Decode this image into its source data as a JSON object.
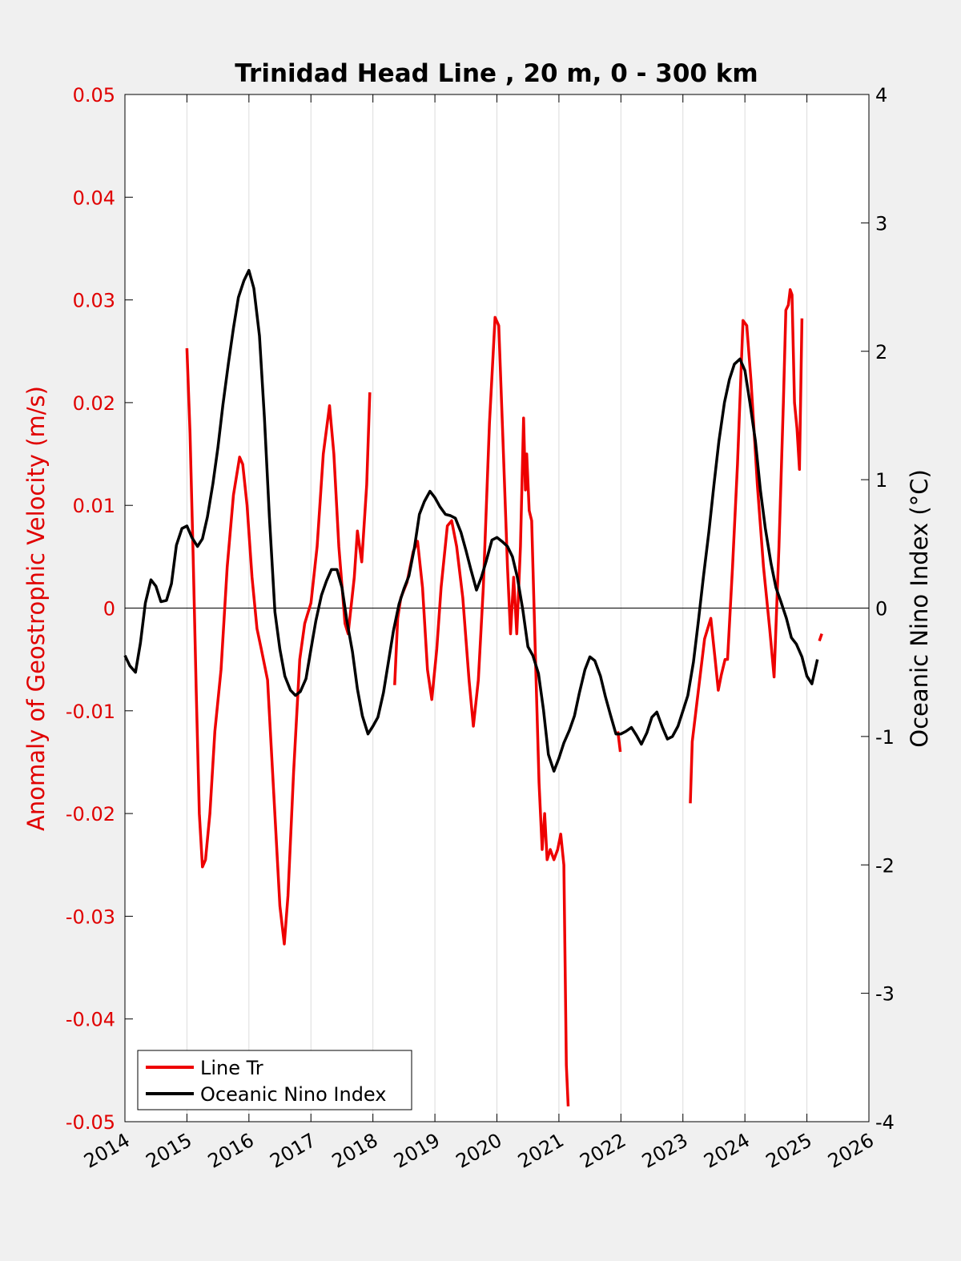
{
  "chart_data": {
    "type": "line",
    "title": "Trinidad Head Line , 20 m, 0 - 300 km",
    "xlabel": "",
    "xlim": [
      2014,
      2026
    ],
    "x_ticks": [
      "2014",
      "2015",
      "2016",
      "2017",
      "2018",
      "2019",
      "2020",
      "2021",
      "2022",
      "2023",
      "2024",
      "2025",
      "2026"
    ],
    "ylabel_left": "Anomaly of Geostrophic Velocity (m/s)",
    "ylim_left": [
      -0.05,
      0.05
    ],
    "y_ticks_left": [
      "0.05",
      "0.04",
      "0.03",
      "0.02",
      "0.01",
      "0",
      "-0.01",
      "-0.02",
      "-0.03",
      "-0.04",
      "-0.05"
    ],
    "ylabel_right": "Oceanic Nino Index (°C)",
    "ylim_right": [
      -4,
      4
    ],
    "y_ticks_right": [
      "4",
      "3",
      "2",
      "1",
      "0",
      "-1",
      "-2",
      "-3",
      "-4"
    ],
    "grid": "vertical",
    "legend_position": "bottom-left",
    "colors": {
      "line_tr": "#ee0000",
      "oni": "#000000",
      "axis_left": "#e00000"
    },
    "series": [
      {
        "name": "Line Tr",
        "axis": "left",
        "segments": [
          [
            [
              2015.0,
              0.0253
            ],
            [
              2015.05,
              0.017
            ],
            [
              2015.1,
              0.005
            ],
            [
              2015.15,
              -0.008
            ],
            [
              2015.2,
              -0.02
            ],
            [
              2015.25,
              -0.0252
            ],
            [
              2015.3,
              -0.0245
            ],
            [
              2015.37,
              -0.02
            ],
            [
              2015.45,
              -0.012
            ],
            [
              2015.55,
              -0.006
            ],
            [
              2015.65,
              0.004
            ],
            [
              2015.75,
              0.011
            ],
            [
              2015.85,
              0.0147
            ],
            [
              2015.9,
              0.014
            ],
            [
              2015.97,
              0.01
            ],
            [
              2016.05,
              0.003
            ],
            [
              2016.13,
              -0.002
            ],
            [
              2016.2,
              -0.004
            ],
            [
              2016.3,
              -0.007
            ],
            [
              2016.4,
              -0.018
            ],
            [
              2016.5,
              -0.029
            ],
            [
              2016.57,
              -0.0327
            ],
            [
              2016.63,
              -0.028
            ],
            [
              2016.72,
              -0.016
            ],
            [
              2016.82,
              -0.005
            ],
            [
              2016.9,
              -0.0015
            ],
            [
              2017.0,
              0.0005
            ],
            [
              2017.1,
              0.006
            ],
            [
              2017.2,
              0.015
            ],
            [
              2017.3,
              0.0197
            ],
            [
              2017.37,
              0.015
            ],
            [
              2017.45,
              0.006
            ],
            [
              2017.55,
              -0.0015
            ],
            [
              2017.6,
              -0.0025
            ],
            [
              2017.7,
              0.003
            ],
            [
              2017.75,
              0.0075
            ],
            [
              2017.82,
              0.0045
            ],
            [
              2017.9,
              0.012
            ],
            [
              2017.95,
              0.021
            ]
          ],
          [
            [
              2018.35,
              -0.0075
            ],
            [
              2018.4,
              -0.001
            ],
            [
              2018.45,
              0.001
            ],
            [
              2018.55,
              0.0025
            ],
            [
              2018.65,
              0.0055
            ],
            [
              2018.72,
              0.0065
            ],
            [
              2018.8,
              0.002
            ],
            [
              2018.88,
              -0.006
            ],
            [
              2018.95,
              -0.0089
            ],
            [
              2019.03,
              -0.004
            ],
            [
              2019.1,
              0.002
            ],
            [
              2019.2,
              0.008
            ],
            [
              2019.27,
              0.0085
            ],
            [
              2019.35,
              0.006
            ],
            [
              2019.45,
              0.001
            ],
            [
              2019.55,
              -0.007
            ],
            [
              2019.62,
              -0.0115
            ],
            [
              2019.7,
              -0.007
            ],
            [
              2019.78,
              0.002
            ],
            [
              2019.88,
              0.018
            ],
            [
              2019.97,
              0.0283
            ],
            [
              2020.03,
              0.0275
            ],
            [
              2020.1,
              0.016
            ],
            [
              2020.17,
              0.004
            ],
            [
              2020.22,
              -0.0025
            ],
            [
              2020.27,
              0.003
            ],
            [
              2020.32,
              -0.0025
            ],
            [
              2020.38,
              0.006
            ],
            [
              2020.43,
              0.0185
            ],
            [
              2020.46,
              0.0115
            ],
            [
              2020.48,
              0.015
            ],
            [
              2020.52,
              0.0095
            ],
            [
              2020.56,
              0.0085
            ],
            [
              2020.62,
              -0.0045
            ],
            [
              2020.68,
              -0.017
            ],
            [
              2020.73,
              -0.0235
            ],
            [
              2020.77,
              -0.02
            ],
            [
              2020.81,
              -0.0245
            ],
            [
              2020.86,
              -0.0235
            ],
            [
              2020.92,
              -0.0245
            ],
            [
              2020.98,
              -0.0235
            ],
            [
              2021.03,
              -0.022
            ],
            [
              2021.08,
              -0.025
            ],
            [
              2021.12,
              -0.0445
            ],
            [
              2021.15,
              -0.0485
            ]
          ],
          [
            [
              2021.95,
              -0.012
            ],
            [
              2021.99,
              -0.014
            ]
          ],
          [
            [
              2023.12,
              -0.019
            ],
            [
              2023.15,
              -0.013
            ],
            [
              2023.25,
              -0.008
            ],
            [
              2023.35,
              -0.003
            ],
            [
              2023.45,
              -0.001
            ],
            [
              2023.52,
              -0.005
            ],
            [
              2023.57,
              -0.008
            ],
            [
              2023.62,
              -0.0065
            ],
            [
              2023.68,
              -0.005
            ],
            [
              2023.72,
              -0.005
            ],
            [
              2023.8,
              0.004
            ],
            [
              2023.88,
              0.014
            ],
            [
              2023.97,
              0.028
            ],
            [
              2024.03,
              0.0275
            ],
            [
              2024.1,
              0.022
            ],
            [
              2024.2,
              0.012
            ],
            [
              2024.3,
              0.004
            ],
            [
              2024.4,
              -0.002
            ],
            [
              2024.47,
              -0.0067
            ],
            [
              2024.55,
              0.006
            ],
            [
              2024.62,
              0.02
            ],
            [
              2024.66,
              0.029
            ],
            [
              2024.7,
              0.0295
            ],
            [
              2024.73,
              0.031
            ],
            [
              2024.76,
              0.0305
            ],
            [
              2024.8,
              0.02
            ],
            [
              2024.84,
              0.0175
            ],
            [
              2024.88,
              0.0135
            ],
            [
              2024.92,
              0.0282
            ]
          ],
          [
            [
              2025.2,
              -0.0032
            ],
            [
              2025.24,
              -0.0025
            ]
          ]
        ]
      },
      {
        "name": "Oceanic Nino Index",
        "axis": "right",
        "segments": [
          [
            [
              2014.0,
              -0.37
            ],
            [
              2014.08,
              -0.45
            ],
            [
              2014.17,
              -0.5
            ],
            [
              2014.25,
              -0.27
            ],
            [
              2014.33,
              0.04
            ],
            [
              2014.42,
              0.22
            ],
            [
              2014.5,
              0.17
            ],
            [
              2014.58,
              0.05
            ],
            [
              2014.67,
              0.06
            ],
            [
              2014.75,
              0.19
            ],
            [
              2014.83,
              0.49
            ],
            [
              2014.92,
              0.62
            ],
            [
              2015.0,
              0.64
            ],
            [
              2015.08,
              0.55
            ],
            [
              2015.17,
              0.48
            ],
            [
              2015.25,
              0.54
            ],
            [
              2015.33,
              0.71
            ],
            [
              2015.42,
              0.97
            ],
            [
              2015.5,
              1.25
            ],
            [
              2015.58,
              1.58
            ],
            [
              2015.67,
              1.91
            ],
            [
              2015.75,
              2.18
            ],
            [
              2015.83,
              2.42
            ],
            [
              2015.92,
              2.55
            ],
            [
              2016.0,
              2.63
            ],
            [
              2016.08,
              2.49
            ],
            [
              2016.17,
              2.12
            ],
            [
              2016.25,
              1.48
            ],
            [
              2016.33,
              0.71
            ],
            [
              2016.42,
              -0.03
            ],
            [
              2016.5,
              -0.32
            ],
            [
              2016.58,
              -0.53
            ],
            [
              2016.67,
              -0.64
            ],
            [
              2016.75,
              -0.68
            ],
            [
              2016.83,
              -0.65
            ],
            [
              2016.92,
              -0.55
            ],
            [
              2017.0,
              -0.32
            ],
            [
              2017.08,
              -0.1
            ],
            [
              2017.17,
              0.1
            ],
            [
              2017.25,
              0.21
            ],
            [
              2017.33,
              0.3
            ],
            [
              2017.42,
              0.3
            ],
            [
              2017.5,
              0.16
            ],
            [
              2017.58,
              -0.1
            ],
            [
              2017.67,
              -0.34
            ],
            [
              2017.75,
              -0.63
            ],
            [
              2017.83,
              -0.84
            ],
            [
              2017.92,
              -0.98
            ],
            [
              2018.0,
              -0.92
            ],
            [
              2018.08,
              -0.85
            ],
            [
              2018.17,
              -0.66
            ],
            [
              2018.25,
              -0.42
            ],
            [
              2018.33,
              -0.18
            ],
            [
              2018.42,
              0.03
            ],
            [
              2018.5,
              0.15
            ],
            [
              2018.58,
              0.25
            ],
            [
              2018.67,
              0.47
            ],
            [
              2018.75,
              0.73
            ],
            [
              2018.83,
              0.83
            ],
            [
              2018.92,
              0.91
            ],
            [
              2019.0,
              0.86
            ],
            [
              2019.08,
              0.79
            ],
            [
              2019.17,
              0.73
            ],
            [
              2019.25,
              0.72
            ],
            [
              2019.33,
              0.7
            ],
            [
              2019.42,
              0.59
            ],
            [
              2019.5,
              0.45
            ],
            [
              2019.58,
              0.3
            ],
            [
              2019.67,
              0.14
            ],
            [
              2019.75,
              0.24
            ],
            [
              2019.83,
              0.37
            ],
            [
              2019.92,
              0.53
            ],
            [
              2020.0,
              0.55
            ],
            [
              2020.08,
              0.52
            ],
            [
              2020.17,
              0.48
            ],
            [
              2020.25,
              0.4
            ],
            [
              2020.33,
              0.24
            ],
            [
              2020.42,
              -0.02
            ],
            [
              2020.5,
              -0.3
            ],
            [
              2020.58,
              -0.37
            ],
            [
              2020.67,
              -0.51
            ],
            [
              2020.75,
              -0.79
            ],
            [
              2020.83,
              -1.14
            ],
            [
              2020.92,
              -1.27
            ],
            [
              2021.0,
              -1.17
            ],
            [
              2021.08,
              -1.05
            ],
            [
              2021.17,
              -0.95
            ],
            [
              2021.25,
              -0.84
            ],
            [
              2021.33,
              -0.66
            ],
            [
              2021.42,
              -0.48
            ],
            [
              2021.5,
              -0.38
            ],
            [
              2021.58,
              -0.41
            ],
            [
              2021.67,
              -0.53
            ],
            [
              2021.75,
              -0.69
            ],
            [
              2021.83,
              -0.83
            ],
            [
              2021.92,
              -0.98
            ],
            [
              2022.0,
              -0.98
            ],
            [
              2022.08,
              -0.96
            ],
            [
              2022.17,
              -0.93
            ],
            [
              2022.25,
              -0.99
            ],
            [
              2022.33,
              -1.06
            ],
            [
              2022.42,
              -0.97
            ],
            [
              2022.5,
              -0.85
            ],
            [
              2022.58,
              -0.81
            ],
            [
              2022.67,
              -0.93
            ],
            [
              2022.75,
              -1.02
            ],
            [
              2022.83,
              -1.0
            ],
            [
              2022.92,
              -0.92
            ],
            [
              2023.0,
              -0.8
            ],
            [
              2023.08,
              -0.68
            ],
            [
              2023.17,
              -0.42
            ],
            [
              2023.25,
              -0.1
            ],
            [
              2023.33,
              0.24
            ],
            [
              2023.42,
              0.6
            ],
            [
              2023.5,
              0.96
            ],
            [
              2023.58,
              1.3
            ],
            [
              2023.67,
              1.6
            ],
            [
              2023.75,
              1.78
            ],
            [
              2023.83,
              1.9
            ],
            [
              2023.92,
              1.94
            ],
            [
              2024.0,
              1.85
            ],
            [
              2024.08,
              1.6
            ],
            [
              2024.17,
              1.3
            ],
            [
              2024.25,
              0.92
            ],
            [
              2024.33,
              0.62
            ],
            [
              2024.42,
              0.35
            ],
            [
              2024.5,
              0.16
            ],
            [
              2024.58,
              0.05
            ],
            [
              2024.67,
              -0.08
            ],
            [
              2024.75,
              -0.23
            ],
            [
              2024.83,
              -0.28
            ],
            [
              2024.92,
              -0.38
            ],
            [
              2025.0,
              -0.53
            ],
            [
              2025.08,
              -0.59
            ],
            [
              2025.17,
              -0.4
            ]
          ]
        ]
      }
    ]
  }
}
